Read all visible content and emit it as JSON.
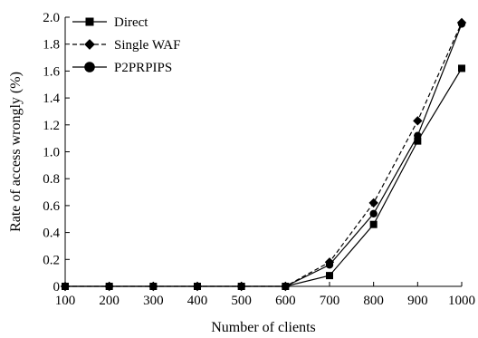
{
  "chart_data": {
    "type": "line",
    "title": "",
    "xlabel": "Number of clients",
    "ylabel": "Rate of access wrongly (%)",
    "x": [
      100,
      200,
      300,
      400,
      500,
      600,
      700,
      800,
      900,
      1000
    ],
    "x_ticks": [
      "100",
      "200",
      "300",
      "400",
      "500",
      "600",
      "700",
      "800",
      "900",
      "1000"
    ],
    "y_ticks": [
      "0",
      "0.2",
      "0.4",
      "0.6",
      "0.8",
      "1.0",
      "1.2",
      "1.4",
      "1.6",
      "1.8",
      "2.0"
    ],
    "ylim": [
      0,
      2.0
    ],
    "grid": false,
    "legend_position": "top-left",
    "series": [
      {
        "name": "Direct",
        "marker": "square",
        "line_style": "solid",
        "color": "#000000",
        "values": [
          0,
          0,
          0,
          0,
          0,
          0,
          0.08,
          0.46,
          1.08,
          1.62
        ]
      },
      {
        "name": "Single WAF",
        "marker": "diamond",
        "line_style": "dashed",
        "color": "#000000",
        "values": [
          0,
          0,
          0,
          0,
          0,
          0,
          0.18,
          0.62,
          1.23,
          1.96
        ]
      },
      {
        "name": "P2PRPIPS",
        "marker": "circle",
        "line_style": "solid",
        "color": "#000000",
        "values": [
          0,
          0,
          0,
          0,
          0,
          0,
          0.16,
          0.54,
          1.12,
          1.95
        ]
      }
    ]
  }
}
